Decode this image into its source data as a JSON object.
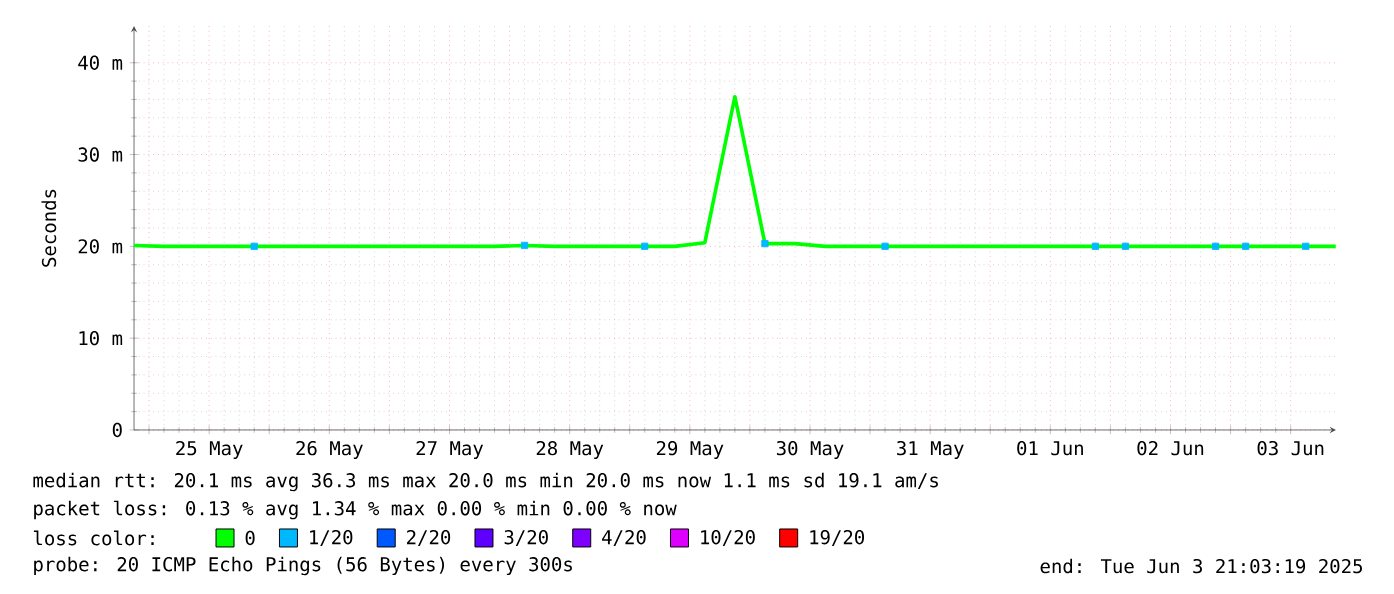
{
  "chart_data": {
    "type": "line",
    "ylabel": "Seconds",
    "legend_title": "loss color:",
    "legend": "bottom",
    "grid": true,
    "xlim": [
      "2025-05-24T21:00",
      "2025-06-03T21:03"
    ],
    "xticks": [
      {
        "value": "2025-05-25T00:00",
        "label": null
      },
      {
        "value": "2025-05-25T12:00",
        "label": "25 May"
      },
      {
        "value": "2025-05-26T00:00",
        "label": null
      },
      {
        "value": "2025-05-26T12:00",
        "label": "26 May"
      },
      {
        "value": "2025-05-27T00:00",
        "label": null
      },
      {
        "value": "2025-05-27T12:00",
        "label": "27 May"
      },
      {
        "value": "2025-05-28T00:00",
        "label": null
      },
      {
        "value": "2025-05-28T12:00",
        "label": "28 May"
      },
      {
        "value": "2025-05-29T00:00",
        "label": null
      },
      {
        "value": "2025-05-29T12:00",
        "label": "29 May"
      },
      {
        "value": "2025-05-30T00:00",
        "label": null
      },
      {
        "value": "2025-05-30T12:00",
        "label": "30 May"
      },
      {
        "value": "2025-05-31T00:00",
        "label": null
      },
      {
        "value": "2025-05-31T12:00",
        "label": "31 May"
      },
      {
        "value": "2025-06-01T00:00",
        "label": null
      },
      {
        "value": "2025-06-01T12:00",
        "label": "01 Jun"
      },
      {
        "value": "2025-06-02T00:00",
        "label": null
      },
      {
        "value": "2025-06-02T12:00",
        "label": "02 Jun"
      },
      {
        "value": "2025-06-03T00:00",
        "label": null
      },
      {
        "value": "2025-06-03T12:00",
        "label": "03 Jun"
      }
    ],
    "ylim": [
      0,
      44
    ],
    "yticks": [
      0,
      {
        "value": 10,
        "label": "10 m"
      },
      {
        "value": 20,
        "label": "20 m"
      },
      {
        "value": 30,
        "label": "30 m"
      },
      {
        "value": 40,
        "label": "40 m"
      }
    ],
    "x": [
      "2025-05-24T21:00",
      "2025-05-25T03:00",
      "2025-05-25T09:00",
      "2025-05-25T15:00",
      "2025-05-25T21:00",
      "2025-05-26T03:00",
      "2025-05-26T09:00",
      "2025-05-26T15:00",
      "2025-05-26T21:00",
      "2025-05-27T03:00",
      "2025-05-27T09:00",
      "2025-05-27T15:00",
      "2025-05-27T21:00",
      "2025-05-28T03:00",
      "2025-05-28T09:00",
      "2025-05-28T15:00",
      "2025-05-28T21:00",
      "2025-05-29T03:00",
      "2025-05-29T09:00",
      "2025-05-29T15:00",
      "2025-05-29T21:00",
      "2025-05-30T03:00",
      "2025-05-30T09:00",
      "2025-05-30T15:00",
      "2025-05-30T21:00",
      "2025-05-31T03:00",
      "2025-05-31T09:00",
      "2025-05-31T15:00",
      "2025-05-31T21:00",
      "2025-06-01T03:00",
      "2025-06-01T09:00",
      "2025-06-01T15:00",
      "2025-06-01T21:00",
      "2025-06-02T03:00",
      "2025-06-02T09:00",
      "2025-06-02T15:00",
      "2025-06-02T21:00",
      "2025-06-03T03:00",
      "2025-06-03T09:00",
      "2025-06-03T15:00",
      "2025-06-03T21:00"
    ],
    "series": [
      {
        "name": "0",
        "color": "#00ff00",
        "values": [
          20.1,
          20.0,
          20.0,
          20.0,
          20.0,
          20.0,
          20.0,
          20.0,
          20.0,
          20.0,
          20.0,
          20.0,
          20.0,
          20.1,
          20.0,
          20.0,
          20.0,
          20.0,
          20.0,
          20.4,
          36.3,
          20.3,
          20.3,
          20.0,
          20.0,
          20.0,
          20.0,
          20.0,
          20.0,
          20.0,
          20.0,
          20.0,
          20.0,
          20.0,
          20.0,
          20.0,
          20.0,
          20.0,
          20.0,
          20.0,
          20.0
        ]
      },
      {
        "name": "1/20",
        "type": "scatter",
        "marker": "square",
        "color": "#00b8ff",
        "values": [
          null,
          null,
          null,
          null,
          20.0,
          null,
          null,
          null,
          null,
          null,
          null,
          null,
          null,
          20.1,
          null,
          null,
          null,
          20.0,
          null,
          null,
          null,
          20.3,
          null,
          null,
          null,
          20.0,
          null,
          null,
          null,
          null,
          null,
          null,
          20.0,
          20.0,
          null,
          null,
          20.0,
          20.0,
          null,
          20.0,
          null
        ]
      },
      {
        "name": "2/20",
        "type": "scatter",
        "marker": "square",
        "color": "#0059ff",
        "values": [
          null,
          null,
          null,
          null,
          null,
          null,
          null,
          null,
          null,
          null,
          null,
          null,
          null,
          null,
          null,
          null,
          null,
          null,
          null,
          null,
          null,
          null,
          null,
          null,
          null,
          null,
          null,
          null,
          null,
          null,
          null,
          null,
          null,
          null,
          null,
          null,
          null,
          null,
          null,
          null,
          null
        ]
      },
      {
        "name": "3/20",
        "type": "scatter",
        "marker": "square",
        "color": "#5e00ff",
        "values": [
          null,
          null,
          null,
          null,
          null,
          null,
          null,
          null,
          null,
          null,
          null,
          null,
          null,
          null,
          null,
          null,
          null,
          null,
          null,
          null,
          null,
          null,
          null,
          null,
          null,
          null,
          null,
          null,
          null,
          null,
          null,
          null,
          null,
          null,
          null,
          null,
          null,
          null,
          null,
          null,
          null
        ]
      },
      {
        "name": "4/20",
        "type": "scatter",
        "marker": "square",
        "color": "#7e00ff",
        "values": [
          null,
          null,
          null,
          null,
          null,
          null,
          null,
          null,
          null,
          null,
          null,
          null,
          null,
          null,
          null,
          null,
          null,
          null,
          null,
          null,
          null,
          null,
          null,
          null,
          null,
          null,
          null,
          null,
          null,
          null,
          null,
          null,
          null,
          null,
          null,
          null,
          null,
          null,
          null,
          null,
          null
        ]
      },
      {
        "name": "10/20",
        "type": "scatter",
        "marker": "square",
        "color": "#dd00ff",
        "values": [
          null,
          null,
          null,
          null,
          null,
          null,
          null,
          null,
          null,
          null,
          null,
          null,
          null,
          null,
          null,
          null,
          null,
          null,
          null,
          null,
          null,
          null,
          null,
          null,
          null,
          null,
          null,
          null,
          null,
          null,
          null,
          null,
          null,
          null,
          null,
          null,
          null,
          null,
          null,
          null,
          null
        ]
      },
      {
        "name": "19/20",
        "type": "scatter",
        "marker": "square",
        "color": "#ff0000",
        "values": [
          null,
          null,
          null,
          null,
          null,
          null,
          null,
          null,
          null,
          null,
          null,
          null,
          null,
          null,
          null,
          null,
          null,
          null,
          null,
          null,
          null,
          null,
          null,
          null,
          null,
          null,
          null,
          null,
          null,
          null,
          null,
          null,
          null,
          null,
          null,
          null,
          null,
          null,
          null,
          null,
          null
        ]
      }
    ],
    "annotations": [
      "median rtt:  20.1 ms avg  36.3 ms max  20.0 ms min  20.0 ms now  1.1 ms sd  19.1   am/s",
      "packet loss: 0.13 % avg  1.34 % max  0.00 % min  0.00 % now",
      "probe:       20 ICMP Echo Pings (56 Bytes) every 300s",
      "end: Tue Jun  3 21:03:19 2025"
    ]
  }
}
